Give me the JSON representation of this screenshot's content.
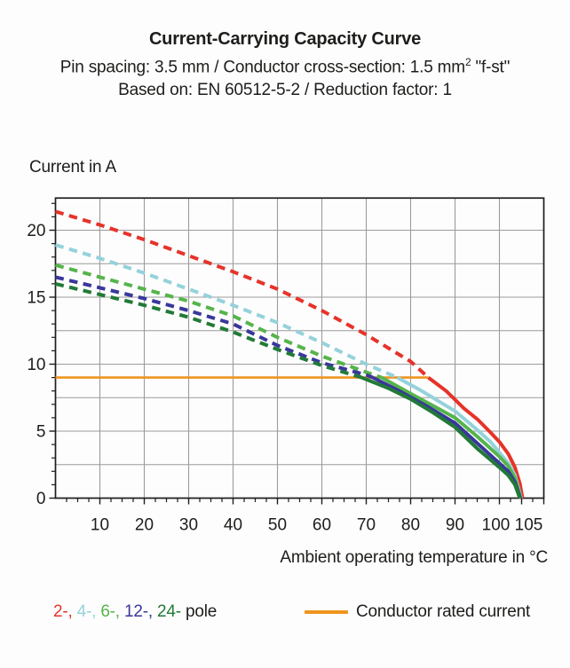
{
  "header": {
    "title": "Current-Carrying Capacity Curve",
    "subtitle": {
      "part1": "Pin spacing: 3.5 mm / Conductor cross-section: 1.5 mm",
      "sup": "2",
      "part2": " \"f-st\""
    },
    "based_on": "Based on: EN 60512-5-2 / Reduction factor: 1"
  },
  "legend": {
    "pole_parts": [
      {
        "label": "2-",
        "color": "#e6332a"
      },
      {
        "label": "4-",
        "color": "#95d2db"
      },
      {
        "label": "6-",
        "color": "#55b44b"
      },
      {
        "label": "12-",
        "color": "#39379c"
      },
      {
        "label": "24-",
        "color": "#217a37"
      }
    ],
    "separator": ", ",
    "pole_suffix": " pole"
  },
  "chart_data": {
    "type": "line",
    "title": "Current-Carrying Capacity Curve",
    "xlabel": "Ambient operating temperature in °C",
    "ylabel": "Current in A",
    "xlim": [
      0,
      110
    ],
    "ylim": [
      0,
      22.4
    ],
    "grid": {
      "on": true,
      "x_step": 10,
      "y_step": 2.5,
      "color": "#9c9c9c"
    },
    "x_major_ticks": [
      10,
      20,
      30,
      40,
      50,
      60,
      70,
      80,
      90,
      100,
      105
    ],
    "x_frame_ticks": [
      110
    ],
    "x_minor_step": 2.5,
    "y_major_ticks": [
      0,
      5,
      10,
      15,
      20
    ],
    "y_minor_step": 1,
    "axis_color": "#1d1d1b",
    "rated_current": {
      "label": "Conductor rated current",
      "value": 9,
      "t_start": 0,
      "t_end": 84,
      "color": "#ef941f"
    },
    "series": [
      {
        "name": "2-pole",
        "poles": 2,
        "color": "#e6332a",
        "transition_temp": 84,
        "dashed_points": [
          [
            0,
            21.4
          ],
          [
            10,
            20.4
          ],
          [
            20,
            19.3
          ],
          [
            30,
            18.1
          ],
          [
            40,
            16.9
          ],
          [
            50,
            15.6
          ],
          [
            60,
            14.0
          ],
          [
            70,
            12.2
          ],
          [
            80,
            10.2
          ],
          [
            84,
            9.0
          ]
        ],
        "solid_points": [
          [
            84,
            9.0
          ],
          [
            88,
            8.0
          ],
          [
            92,
            6.7
          ],
          [
            95,
            5.9
          ],
          [
            98,
            4.9
          ],
          [
            100,
            4.2
          ],
          [
            102,
            3.3
          ],
          [
            103.5,
            2.3
          ],
          [
            104.6,
            1.1
          ],
          [
            105.2,
            0
          ]
        ]
      },
      {
        "name": "4-pole",
        "poles": 4,
        "color": "#95d2db",
        "transition_temp": 77,
        "dashed_points": [
          [
            0,
            18.9
          ],
          [
            10,
            17.9
          ],
          [
            20,
            16.8
          ],
          [
            30,
            15.6
          ],
          [
            40,
            14.4
          ],
          [
            50,
            13.1
          ],
          [
            60,
            11.6
          ],
          [
            70,
            10.0
          ],
          [
            77,
            9.0
          ]
        ],
        "solid_points": [
          [
            77,
            9.0
          ],
          [
            82,
            8.1
          ],
          [
            86,
            7.3
          ],
          [
            90,
            6.5
          ],
          [
            95,
            5.1
          ],
          [
            98,
            4.2
          ],
          [
            100,
            3.4
          ],
          [
            102,
            2.6
          ],
          [
            103.5,
            1.7
          ],
          [
            104.9,
            0
          ]
        ]
      },
      {
        "name": "6-pole",
        "poles": 6,
        "color": "#55b44b",
        "transition_temp": 73.5,
        "dashed_points": [
          [
            0,
            17.4
          ],
          [
            10,
            16.5
          ],
          [
            20,
            15.6
          ],
          [
            30,
            14.7
          ],
          [
            40,
            13.6
          ],
          [
            50,
            12.0
          ],
          [
            60,
            10.6
          ],
          [
            70,
            9.4
          ],
          [
            73.5,
            9.0
          ]
        ],
        "solid_points": [
          [
            73.5,
            9.0
          ],
          [
            80,
            7.8
          ],
          [
            85,
            6.9
          ],
          [
            90,
            6.0
          ],
          [
            95,
            4.6
          ],
          [
            100,
            3.1
          ],
          [
            102,
            2.4
          ],
          [
            103.5,
            1.5
          ],
          [
            104.8,
            0
          ]
        ]
      },
      {
        "name": "12-pole",
        "poles": 12,
        "color": "#39379c",
        "transition_temp": 71.5,
        "dashed_points": [
          [
            0,
            16.5
          ],
          [
            10,
            15.7
          ],
          [
            20,
            14.9
          ],
          [
            30,
            14.0
          ],
          [
            40,
            13.0
          ],
          [
            50,
            11.4
          ],
          [
            60,
            10.1
          ],
          [
            70,
            9.2
          ],
          [
            71.5,
            9.0
          ]
        ],
        "solid_points": [
          [
            71.5,
            9.0
          ],
          [
            78,
            7.9
          ],
          [
            84,
            6.8
          ],
          [
            90,
            5.6
          ],
          [
            95,
            4.1
          ],
          [
            100,
            2.6
          ],
          [
            102,
            2.0
          ],
          [
            103.5,
            1.2
          ],
          [
            104.7,
            0
          ]
        ]
      },
      {
        "name": "24-pole",
        "poles": 24,
        "color": "#217a37",
        "transition_temp": 69,
        "dashed_points": [
          [
            0,
            16.0
          ],
          [
            10,
            15.2
          ],
          [
            20,
            14.4
          ],
          [
            30,
            13.5
          ],
          [
            40,
            12.4
          ],
          [
            50,
            11.1
          ],
          [
            60,
            9.9
          ],
          [
            69,
            9.0
          ]
        ],
        "solid_points": [
          [
            69,
            9.0
          ],
          [
            75,
            8.2
          ],
          [
            80,
            7.4
          ],
          [
            85,
            6.4
          ],
          [
            90,
            5.3
          ],
          [
            95,
            3.7
          ],
          [
            100,
            2.3
          ],
          [
            102,
            1.7
          ],
          [
            103.5,
            1.0
          ],
          [
            104.6,
            0
          ]
        ]
      }
    ]
  }
}
